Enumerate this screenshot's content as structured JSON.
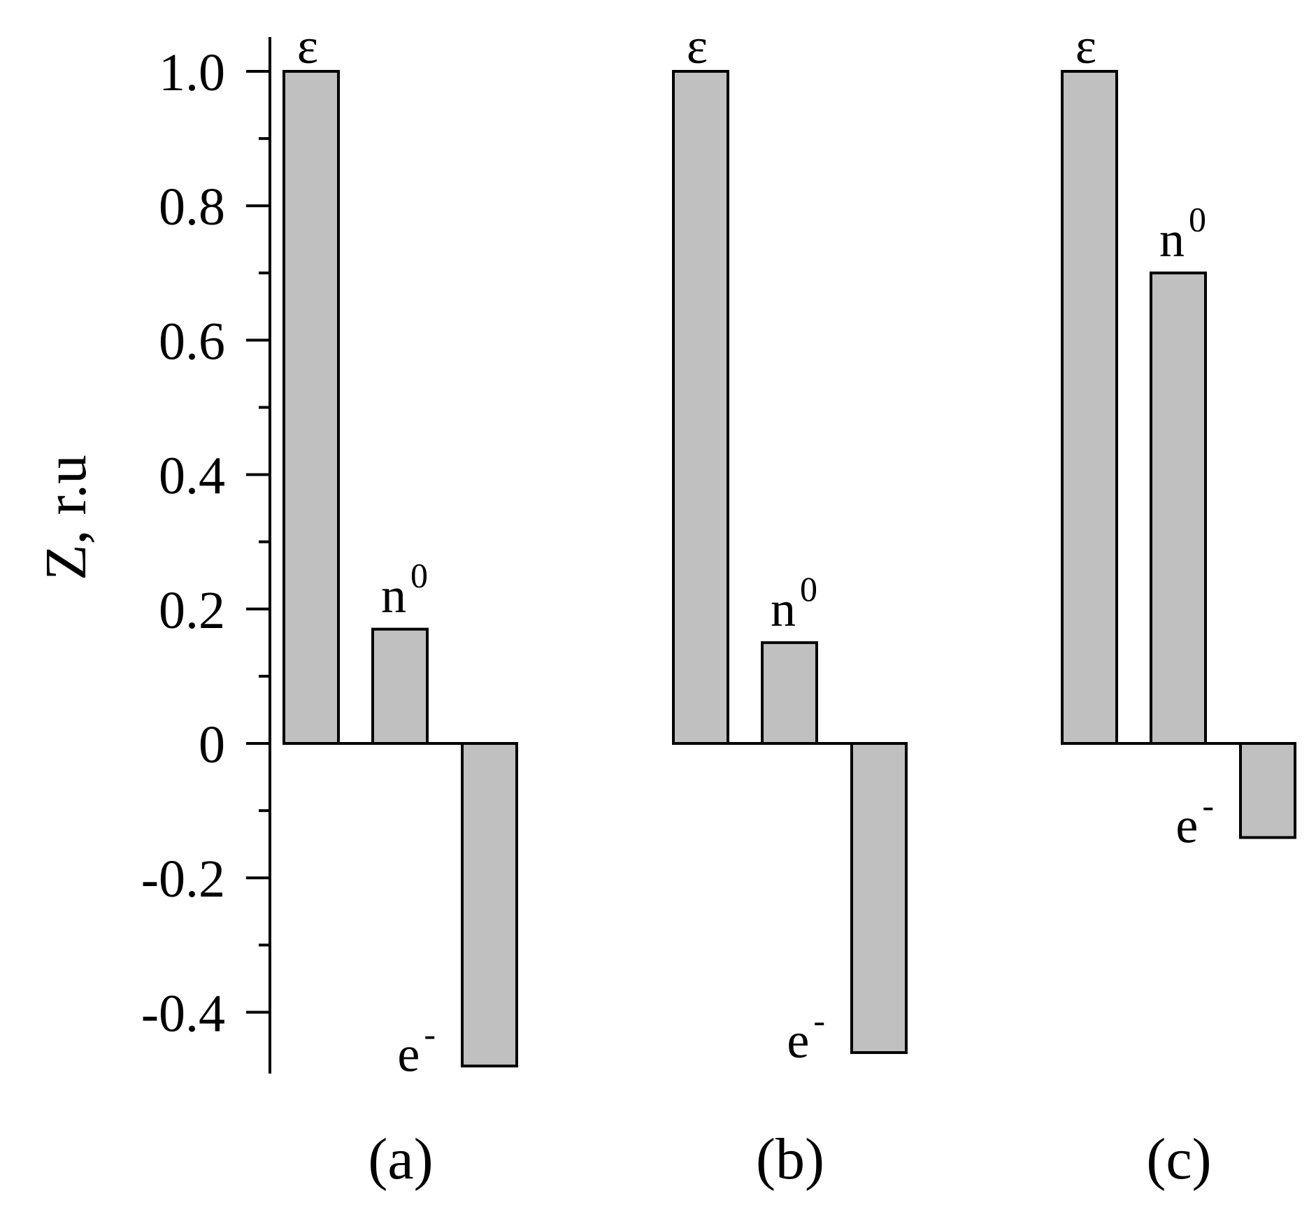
{
  "chart_data": {
    "type": "bar",
    "ylabel": "Z, r.u",
    "ylim": [
      -0.48,
      1.05
    ],
    "yticks": [
      {
        "value": 1.0,
        "label": "1.0"
      },
      {
        "value": 0.8,
        "label": "0.8"
      },
      {
        "value": 0.6,
        "label": "0.6"
      },
      {
        "value": 0.4,
        "label": "0.4"
      },
      {
        "value": 0.2,
        "label": "0.2"
      },
      {
        "value": 0,
        "label": "0"
      },
      {
        "value": -0.2,
        "label": "-0.2"
      },
      {
        "value": -0.4,
        "label": "-0.4"
      }
    ],
    "minor_tick_step": 0.1,
    "grid": false,
    "bar_color": "#c0c0c0",
    "panels": [
      {
        "label": "(a)",
        "bars": [
          {
            "name": "ε",
            "sup": "",
            "value": 1.0
          },
          {
            "name": "n",
            "sup": "0",
            "value": 0.17
          },
          {
            "name": "e",
            "sup": "-",
            "value": -0.48
          }
        ]
      },
      {
        "label": "(b)",
        "bars": [
          {
            "name": "ε",
            "sup": "",
            "value": 1.0
          },
          {
            "name": "n",
            "sup": "0",
            "value": 0.15
          },
          {
            "name": "e",
            "sup": "-",
            "value": -0.46
          }
        ]
      },
      {
        "label": "(c)",
        "bars": [
          {
            "name": "ε",
            "sup": "",
            "value": 1.0
          },
          {
            "name": "n",
            "sup": "0",
            "value": 0.7
          },
          {
            "name": "e",
            "sup": "-",
            "value": -0.14
          }
        ]
      }
    ]
  }
}
